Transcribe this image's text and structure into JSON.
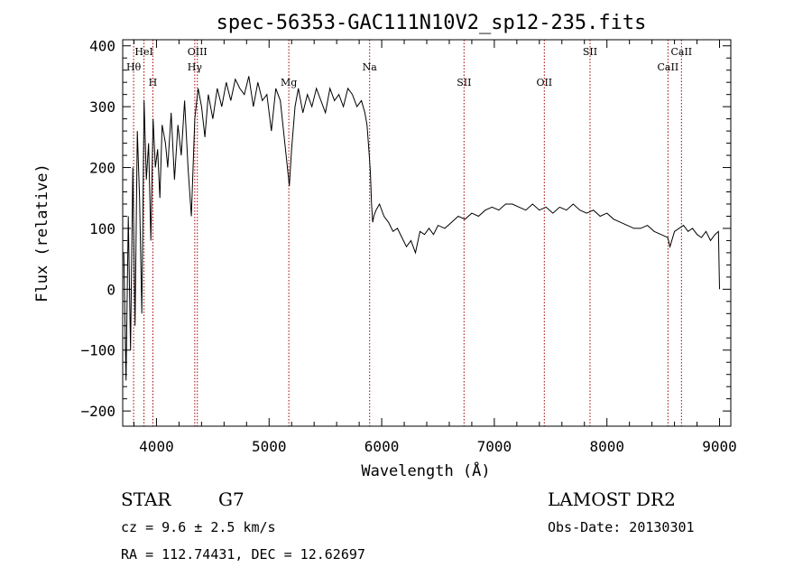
{
  "chart_data": {
    "type": "line",
    "title": "spec-56353-GAC111N10V2_sp12-235.fits",
    "xlabel": "Wavelength (Å)",
    "ylabel": "Flux (relative)",
    "xlim": [
      3700,
      9100
    ],
    "ylim": [
      -225,
      410
    ],
    "x_ticks": [
      4000,
      5000,
      6000,
      7000,
      8000,
      9000
    ],
    "y_ticks": [
      -200,
      -100,
      0,
      100,
      200,
      300,
      400
    ],
    "grid": false,
    "colors": {
      "spectrum": "#000000",
      "line_markers": "#a00000",
      "axes": "#000000"
    },
    "series": [
      {
        "x": [
          3710,
          3730,
          3750,
          3770,
          3790,
          3810,
          3830,
          3850,
          3870,
          3890,
          3910,
          3930,
          3950,
          3970,
          3990,
          4010,
          4030,
          4050,
          4080,
          4100,
          4130,
          4160,
          4190,
          4220,
          4250,
          4280,
          4310,
          4340,
          4370,
          4400,
          4430,
          4460,
          4500,
          4540,
          4580,
          4620,
          4660,
          4700,
          4740,
          4780,
          4820,
          4860,
          4900,
          4940,
          4980,
          5020,
          5060,
          5100,
          5140,
          5180,
          5200,
          5230,
          5260,
          5300,
          5340,
          5380,
          5420,
          5460,
          5500,
          5540,
          5580,
          5620,
          5660,
          5700,
          5740,
          5780,
          5820,
          5850,
          5870,
          5890,
          5900,
          5910,
          5920,
          5930,
          5950,
          5980,
          6020,
          6060,
          6100,
          6140,
          6180,
          6220,
          6260,
          6300,
          6340,
          6380,
          6420,
          6460,
          6500,
          6560,
          6620,
          6680,
          6740,
          6800,
          6860,
          6920,
          6980,
          7040,
          7100,
          7160,
          7220,
          7280,
          7340,
          7400,
          7460,
          7520,
          7580,
          7640,
          7700,
          7760,
          7820,
          7880,
          7940,
          8000,
          8060,
          8120,
          8180,
          8240,
          8300,
          8360,
          8420,
          8480,
          8540,
          8560,
          8600,
          8640,
          8680,
          8720,
          8760,
          8800,
          8840,
          8880,
          8920,
          8960,
          8990,
          9000
        ],
        "y": [
          60,
          -150,
          120,
          -100,
          200,
          -60,
          260,
          150,
          -40,
          310,
          180,
          240,
          80,
          280,
          200,
          230,
          150,
          270,
          240,
          200,
          290,
          180,
          270,
          220,
          310,
          200,
          120,
          280,
          330,
          300,
          250,
          320,
          280,
          330,
          300,
          340,
          310,
          345,
          330,
          320,
          350,
          300,
          340,
          310,
          320,
          260,
          330,
          310,
          240,
          170,
          230,
          300,
          330,
          290,
          320,
          300,
          330,
          310,
          290,
          330,
          310,
          320,
          300,
          330,
          320,
          300,
          310,
          290,
          270,
          220,
          190,
          140,
          110,
          120,
          130,
          140,
          120,
          110,
          95,
          100,
          85,
          70,
          80,
          60,
          95,
          90,
          100,
          90,
          105,
          100,
          110,
          120,
          115,
          125,
          120,
          130,
          135,
          130,
          140,
          140,
          135,
          130,
          140,
          130,
          135,
          125,
          135,
          130,
          140,
          130,
          125,
          130,
          120,
          125,
          115,
          110,
          105,
          100,
          100,
          105,
          95,
          90,
          85,
          70,
          95,
          100,
          105,
          95,
          100,
          90,
          85,
          95,
          80,
          90,
          95,
          0
        ],
        "units_x": "Å",
        "units_y": "relative"
      }
    ],
    "line_marks": [
      {
        "label": "Hθ",
        "x": 3797,
        "row": 2
      },
      {
        "label": "HeI",
        "x": 3889,
        "row": 1
      },
      {
        "label": "H",
        "x": 3968,
        "row": 3
      },
      {
        "label": "OIII",
        "x": 4363,
        "row": 1
      },
      {
        "label": "Hγ",
        "x": 4340,
        "row": 2
      },
      {
        "label": "Mg",
        "x": 5175,
        "row": 3
      },
      {
        "label": "Na",
        "x": 5893,
        "row": 2
      },
      {
        "label": "SII",
        "x": 6731,
        "row": 3
      },
      {
        "label": "OII",
        "x": 7444,
        "row": 3
      },
      {
        "label": "SII",
        "x": 7850,
        "row": 1
      },
      {
        "label": "CaII",
        "x": 8542,
        "row": 2
      },
      {
        "label": "CaII",
        "x": 8662,
        "row": 1
      }
    ]
  },
  "info": {
    "class_label": "STAR",
    "subclass_label": "G7",
    "cz_text": "cz = 9.6 ± 2.5 km/s",
    "coords_text": "RA = 112.74431, DEC =  12.62697",
    "survey_label": "LAMOST DR2",
    "obs_date_text": "Obs-Date: 20130301"
  }
}
